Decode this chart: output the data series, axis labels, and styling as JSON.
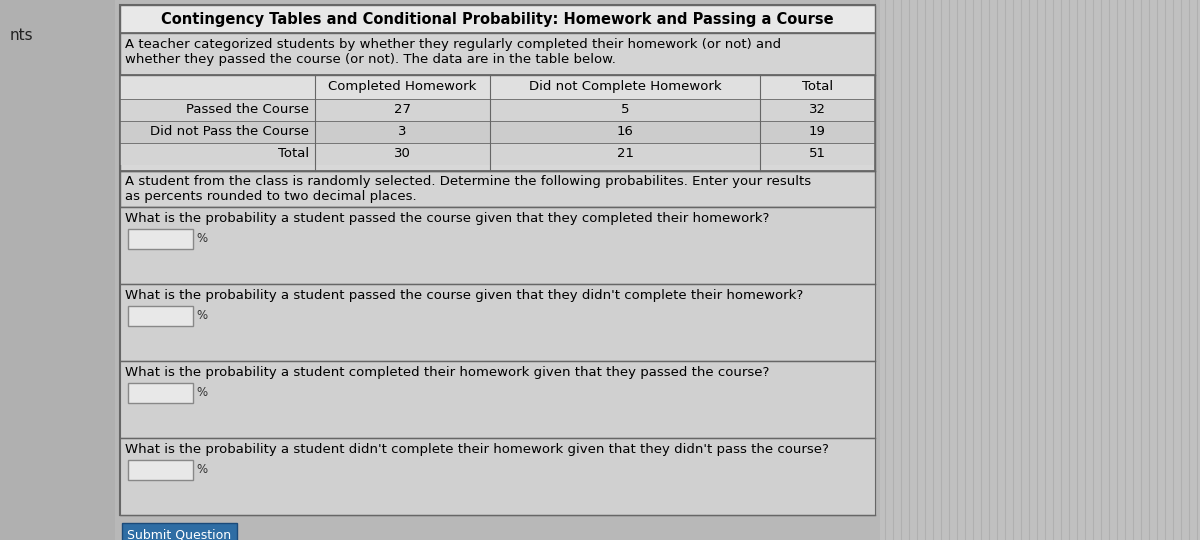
{
  "title": "Contingency Tables and Conditional Probability: Homework and Passing a Course",
  "description_line1": "A teacher categorized students by whether they regularly completed their homework (or not) and",
  "description_line2": "whether they passed the course (or not). The data are in the table below.",
  "table_headers": [
    "",
    "Completed Homework",
    "Did not Complete Homework",
    "Total"
  ],
  "table_rows": [
    [
      "Passed the Course",
      "27",
      "5",
      "32"
    ],
    [
      "Did not Pass the Course",
      "3",
      "16",
      "19"
    ],
    [
      "Total",
      "30",
      "21",
      "51"
    ]
  ],
  "instruction_line1": "A student from the class is randomly selected. Determine the following probabilites. Enter your results",
  "instruction_line2": "as percents rounded to two decimal places.",
  "questions": [
    "What is the probability a student passed the course given that they completed their homework?",
    "What is the probability a student passed the course given that they didn't complete their homework?",
    "What is the probability a student completed their homework given that they passed the course?",
    "What is the probability a student didn't complete their homework given that they didn't pass the course?"
  ],
  "submit_button_text": "Submit Question",
  "bg_color": "#b8b8b8",
  "panel_bg": "#d4d4d4",
  "title_bg": "#e8e8e8",
  "table_cell_bg": "#d8d8d8",
  "table_header_bg": "#e0e0e0",
  "question_bg": "#d0d0d0",
  "input_box_color": "#e8e8e8",
  "submit_btn_color": "#2e6da4",
  "submit_btn_text_color": "#ffffff",
  "border_color": "#666666",
  "left_label_text": "nts",
  "font_size_title": 10.5,
  "font_size_body": 9.5,
  "font_size_table": 9.5,
  "font_size_small": 8.5
}
